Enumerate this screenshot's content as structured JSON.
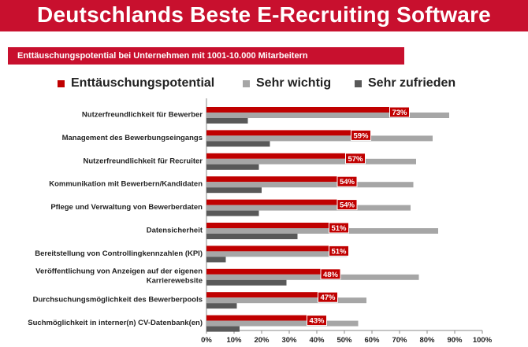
{
  "header": {
    "title": "Deutschlands Beste E-Recruiting Software",
    "subtitle": "Enttäuschungspotential bei Unternehmen mit 1001-10.000 Mitarbeitern"
  },
  "colors": {
    "brand_red": "#c8102e",
    "series_red": "#c00000",
    "series_light_gray": "#a6a6a6",
    "series_dark_gray": "#595959"
  },
  "chart_data": {
    "type": "bar",
    "orientation": "horizontal",
    "categories": [
      "Nutzerfreundlichkeit für Bewerber",
      "Management des Bewerbungseingangs",
      "Nutzerfreundlichkeit für Recruiter",
      "Kommunikation mit Bewerbern/Kandidaten",
      "Pflege und Verwaltung von Bewerberdaten",
      "Datensicherheit",
      "Bereitstellung von Controllingkennzahlen (KPI)",
      "Veröffentlichung von Anzeigen auf der eigenen Karrierewebsite",
      "Durchsuchungsmöglichkeit des Bewerberpools",
      "Suchmöglichkeit in interner(n) CV-Datenbank(en)"
    ],
    "category_lines": [
      [
        "Nutzerfreundlichkeit für Bewerber"
      ],
      [
        "Management des Bewerbungseingangs"
      ],
      [
        "Nutzerfreundlichkeit für Recruiter"
      ],
      [
        "Kommunikation mit Bewerbern/Kandidaten"
      ],
      [
        "Pflege und Verwaltung von Bewerberdaten"
      ],
      [
        "Datensicherheit"
      ],
      [
        "Bereitstellung von Controllingkennzahlen (KPI)"
      ],
      [
        "Veröffentlichung von Anzeigen auf der eigenen",
        "Karrierewebsite"
      ],
      [
        "Durchsuchungsmöglichkeit des Bewerberpools"
      ],
      [
        "Suchmöglichkeit in interner(n) CV-Datenbank(en)"
      ]
    ],
    "series": [
      {
        "name": "Enttäuschungspotential",
        "color": "#c00000",
        "values": [
          73,
          59,
          57,
          54,
          54,
          51,
          51,
          48,
          47,
          43
        ],
        "labels": [
          "73%",
          "59%",
          "57%",
          "54%",
          "54%",
          "51%",
          "51%",
          "48%",
          "47%",
          "43%"
        ]
      },
      {
        "name": "Sehr wichtig",
        "color": "#a6a6a6",
        "values": [
          88,
          82,
          76,
          75,
          74,
          84,
          51,
          77,
          58,
          55
        ]
      },
      {
        "name": "Sehr zufrieden",
        "color": "#595959",
        "values": [
          15,
          23,
          19,
          20,
          19,
          33,
          7,
          29,
          11,
          12
        ]
      }
    ],
    "xlim": [
      0,
      100
    ],
    "xticks": [
      "0%",
      "10%",
      "20%",
      "30%",
      "40%",
      "50%",
      "60%",
      "70%",
      "80%",
      "90%",
      "100%"
    ],
    "xlabel": "",
    "ylabel": "",
    "grid": false,
    "legend_position": "top"
  }
}
